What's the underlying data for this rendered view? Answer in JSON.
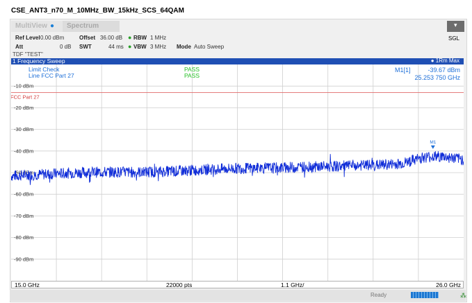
{
  "window_title": "CSE_ANT3_n70_M_10MHz_BW_15kHz_SCS_64QAM",
  "tabs": [
    {
      "label": "MultiView"
    },
    {
      "label": "Spectrum"
    }
  ],
  "sgl": "SGL",
  "params": {
    "ref_level_label": "Ref Level",
    "ref_level_value": "0.00 dBm",
    "offset_label": "Offset",
    "offset_value": "36.00 dB",
    "rbw_label": "RBW",
    "rbw_value": "1 MHz",
    "att_label": "Att",
    "att_value": "0 dB",
    "swt_label": "SWT",
    "swt_value": "44 ms",
    "vbw_label": "VBW",
    "vbw_value": "3 MHz",
    "mode_label": "Mode",
    "mode_value": "Auto Sweep"
  },
  "tdf": "TDF \"TEST\"",
  "chart_header": {
    "title": "1 Frequency Sweep",
    "trace": "1Rm Max"
  },
  "footer": {
    "start": "15.0 GHz",
    "points": "22000 pts",
    "span_per_div": "1.1 GHz/",
    "stop": "26.0 GHz"
  },
  "status": {
    "ready": "Ready"
  },
  "chart_data": {
    "type": "line",
    "x_unit": "GHz",
    "xlim": [
      15.0,
      26.0
    ],
    "ylim": [
      -100,
      0
    ],
    "y_ticks": [
      -10,
      -20,
      -30,
      -40,
      -50,
      -60,
      -70,
      -80,
      -90
    ],
    "y_tick_labels": [
      "-10 dBm",
      "-20 dBm",
      "-30 dBm",
      "-40 dBm",
      "-50 dBm",
      "-60 dBm",
      "-70 dBm",
      "-80 dBm",
      "-90 dBm"
    ],
    "grid": true,
    "limit_line": {
      "name": "FCC Part 27",
      "value": -13
    },
    "limit_check": {
      "label": "Limit Check",
      "result": "PASS",
      "line_label": "Line FCC Part 27",
      "line_result": "PASS"
    },
    "marker": {
      "label": "M1[1]",
      "short": "M1",
      "x": 25.25375,
      "y": -39.67,
      "value_text": "-39.67 dBm",
      "freq_text": "25.253 750 GHz"
    },
    "series": [
      {
        "color": "#0f2cd8",
        "x": [
          15.0,
          15.5,
          16.0,
          16.5,
          17.0,
          17.5,
          18.0,
          18.5,
          19.0,
          19.5,
          20.0,
          20.5,
          21.0,
          21.5,
          22.0,
          22.5,
          23.0,
          23.5,
          24.0,
          24.5,
          25.0,
          25.25,
          25.5,
          26.0
        ],
        "y": [
          -51.5,
          -51.0,
          -50.6,
          -50.1,
          -49.8,
          -49.7,
          -49.8,
          -49.6,
          -49.3,
          -48.8,
          -48.4,
          -48.0,
          -47.9,
          -47.8,
          -47.4,
          -47.2,
          -47.0,
          -46.7,
          -46.4,
          -45.8,
          -43.0,
          -42.5,
          -42.6,
          -44.0
        ]
      }
    ]
  }
}
